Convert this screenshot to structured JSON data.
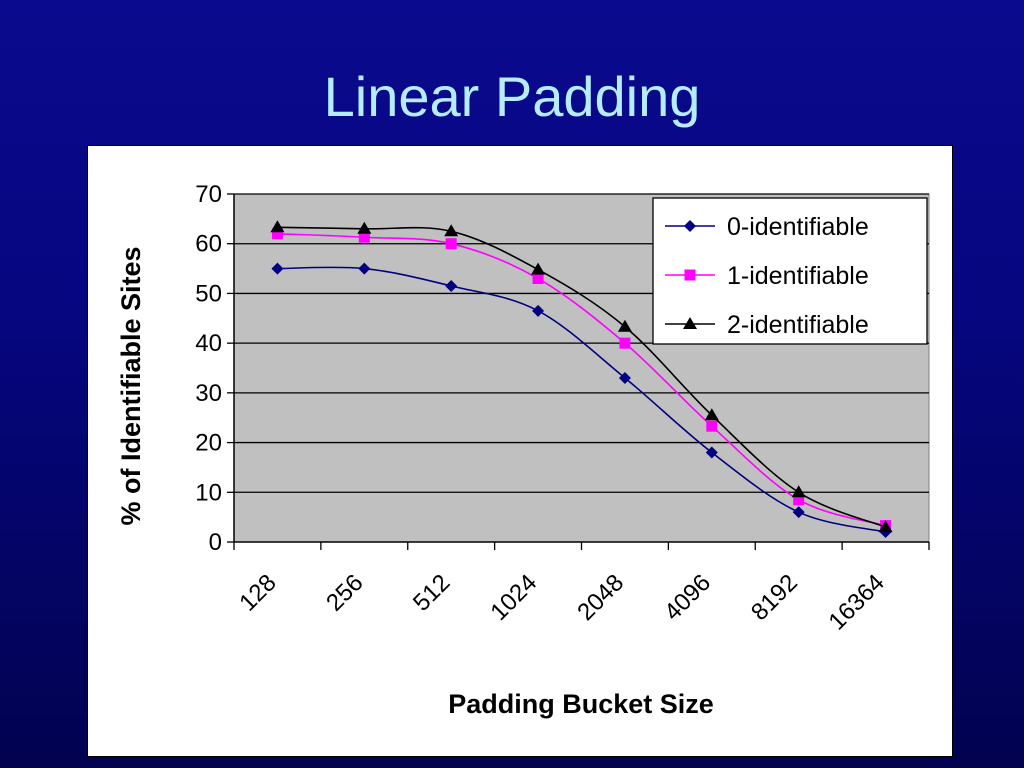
{
  "slide": {
    "title": "Linear Padding"
  },
  "chart_data": {
    "type": "line",
    "categories": [
      "128",
      "256",
      "512",
      "1024",
      "2048",
      "4096",
      "8192",
      "16364"
    ],
    "series": [
      {
        "name": "0-identifiable",
        "values": [
          55,
          55,
          51.5,
          46.5,
          33,
          18,
          6,
          2
        ],
        "color": "#000080",
        "marker": "diamond"
      },
      {
        "name": "1-identifiable",
        "values": [
          62,
          61.3,
          60,
          53,
          40,
          23.3,
          8.5,
          3.3
        ],
        "color": "#ff00ff",
        "marker": "square"
      },
      {
        "name": "2-identifiable",
        "values": [
          63.3,
          63,
          62.5,
          54.8,
          43.3,
          25.5,
          10,
          3
        ],
        "color": "#000000",
        "marker": "triangle"
      }
    ],
    "title": "",
    "xlabel": "Padding Bucket Size",
    "ylabel": "% of Identifiable Sites",
    "ylim": [
      0,
      70
    ],
    "yticks": [
      0,
      10,
      20,
      30,
      40,
      50,
      60,
      70
    ],
    "grid": true,
    "legend_position": "top-right",
    "plot_background": "#c0c0c0"
  }
}
